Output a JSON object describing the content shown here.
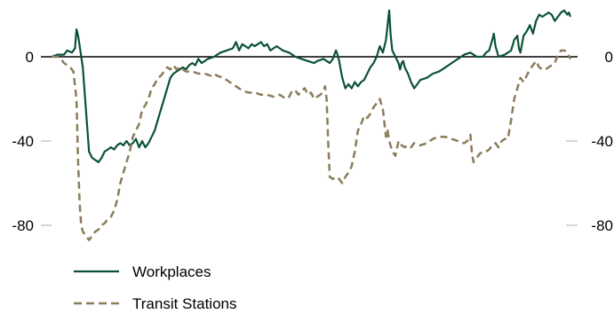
{
  "chart_data": {
    "type": "line",
    "title": "",
    "xlabel": "",
    "ylabel": "",
    "ylim": [
      -90,
      25
    ],
    "yticks": [
      0,
      -40,
      -80
    ],
    "ytick_labels": [
      "0",
      "-40",
      "-80"
    ],
    "legend_placement": "bottom-left",
    "zero_line": true,
    "grid": false,
    "series": [
      {
        "name": "Workplaces",
        "color": "#0b5234",
        "dash": "solid",
        "values": [
          [
            0,
            0
          ],
          [
            4,
            1
          ],
          [
            8,
            1
          ],
          [
            10,
            3
          ],
          [
            13,
            2
          ],
          [
            15,
            4
          ],
          [
            16,
            13
          ],
          [
            17,
            10
          ],
          [
            18,
            5
          ],
          [
            20,
            -5
          ],
          [
            22,
            -25
          ],
          [
            24,
            -45
          ],
          [
            26,
            -48
          ],
          [
            28,
            -49
          ],
          [
            30,
            -50
          ],
          [
            32,
            -48
          ],
          [
            34,
            -45
          ],
          [
            36,
            -44
          ],
          [
            38,
            -43
          ],
          [
            40,
            -44
          ],
          [
            42,
            -42
          ],
          [
            44,
            -41
          ],
          [
            46,
            -42
          ],
          [
            48,
            -40
          ],
          [
            50,
            -42
          ],
          [
            52,
            -41
          ],
          [
            54,
            -39
          ],
          [
            56,
            -43
          ],
          [
            58,
            -40
          ],
          [
            60,
            -43
          ],
          [
            62,
            -41
          ],
          [
            64,
            -38
          ],
          [
            66,
            -35
          ],
          [
            68,
            -30
          ],
          [
            70,
            -25
          ],
          [
            72,
            -20
          ],
          [
            74,
            -15
          ],
          [
            76,
            -10
          ],
          [
            78,
            -8
          ],
          [
            80,
            -7
          ],
          [
            82,
            -6
          ],
          [
            84,
            -5
          ],
          [
            86,
            -6
          ],
          [
            88,
            -4
          ],
          [
            90,
            -3
          ],
          [
            92,
            -4
          ],
          [
            94,
            -1
          ],
          [
            96,
            -3
          ],
          [
            98,
            -2
          ],
          [
            100,
            -1
          ],
          [
            104,
            0
          ],
          [
            108,
            2
          ],
          [
            112,
            3
          ],
          [
            116,
            4
          ],
          [
            118,
            7
          ],
          [
            120,
            3
          ],
          [
            122,
            6
          ],
          [
            124,
            5
          ],
          [
            126,
            4
          ],
          [
            128,
            6
          ],
          [
            130,
            5
          ],
          [
            134,
            7
          ],
          [
            136,
            5
          ],
          [
            138,
            6
          ],
          [
            140,
            3
          ],
          [
            144,
            5
          ],
          [
            148,
            3
          ],
          [
            152,
            2
          ],
          [
            156,
            0
          ],
          [
            160,
            -1
          ],
          [
            164,
            -2
          ],
          [
            168,
            -3
          ],
          [
            170,
            -2
          ],
          [
            174,
            -1
          ],
          [
            178,
            -3
          ],
          [
            180,
            -1
          ],
          [
            182,
            3
          ],
          [
            183,
            1
          ],
          [
            184,
            -2
          ],
          [
            185,
            -6
          ],
          [
            186,
            -10
          ],
          [
            188,
            -15
          ],
          [
            190,
            -13
          ],
          [
            192,
            -15
          ],
          [
            194,
            -12
          ],
          [
            196,
            -14
          ],
          [
            198,
            -12
          ],
          [
            200,
            -11
          ],
          [
            202,
            -8
          ],
          [
            204,
            -5
          ],
          [
            206,
            -3
          ],
          [
            208,
            0
          ],
          [
            210,
            5
          ],
          [
            212,
            2
          ],
          [
            214,
            8
          ],
          [
            215,
            15
          ],
          [
            216,
            22
          ],
          [
            217,
            10
          ],
          [
            218,
            3
          ],
          [
            220,
            0
          ],
          [
            222,
            -3
          ],
          [
            223,
            -6
          ],
          [
            224,
            -3
          ],
          [
            225,
            -2
          ],
          [
            226,
            -5
          ],
          [
            228,
            -8
          ],
          [
            230,
            -12
          ],
          [
            232,
            -15
          ],
          [
            234,
            -13
          ],
          [
            236,
            -11
          ],
          [
            240,
            -10
          ],
          [
            244,
            -8
          ],
          [
            248,
            -7
          ],
          [
            252,
            -5
          ],
          [
            256,
            -3
          ],
          [
            260,
            -1
          ],
          [
            264,
            1
          ],
          [
            268,
            2
          ],
          [
            270,
            1
          ],
          [
            272,
            0
          ],
          [
            276,
            0
          ],
          [
            278,
            2
          ],
          [
            280,
            3
          ],
          [
            282,
            8
          ],
          [
            283,
            11
          ],
          [
            284,
            5
          ],
          [
            286,
            0
          ],
          [
            290,
            1
          ],
          [
            294,
            3
          ],
          [
            296,
            8
          ],
          [
            298,
            10
          ],
          [
            299,
            4
          ],
          [
            300,
            2
          ],
          [
            302,
            10
          ],
          [
            304,
            12
          ],
          [
            306,
            15
          ],
          [
            308,
            11
          ],
          [
            310,
            17
          ],
          [
            312,
            20
          ],
          [
            314,
            19
          ],
          [
            318,
            21
          ],
          [
            320,
            20
          ],
          [
            322,
            17
          ],
          [
            324,
            19
          ],
          [
            326,
            21
          ],
          [
            328,
            22
          ],
          [
            330,
            20
          ],
          [
            331,
            21
          ],
          [
            332,
            19
          ]
        ]
      },
      {
        "name": "Transit Stations",
        "color": "#8b7d5b",
        "dash": "dashed",
        "values": [
          [
            0,
            0
          ],
          [
            4,
            0
          ],
          [
            6,
            -1
          ],
          [
            8,
            -3
          ],
          [
            10,
            -4
          ],
          [
            12,
            -5
          ],
          [
            14,
            -7
          ],
          [
            16,
            -20
          ],
          [
            17,
            -50
          ],
          [
            18,
            -70
          ],
          [
            19,
            -80
          ],
          [
            20,
            -83
          ],
          [
            22,
            -85
          ],
          [
            24,
            -87
          ],
          [
            26,
            -85
          ],
          [
            28,
            -83
          ],
          [
            30,
            -82
          ],
          [
            32,
            -80
          ],
          [
            34,
            -79
          ],
          [
            36,
            -77
          ],
          [
            38,
            -76
          ],
          [
            40,
            -73
          ],
          [
            42,
            -68
          ],
          [
            44,
            -60
          ],
          [
            46,
            -55
          ],
          [
            48,
            -50
          ],
          [
            50,
            -45
          ],
          [
            52,
            -38
          ],
          [
            54,
            -35
          ],
          [
            56,
            -32
          ],
          [
            58,
            -25
          ],
          [
            60,
            -23
          ],
          [
            62,
            -20
          ],
          [
            64,
            -15
          ],
          [
            66,
            -13
          ],
          [
            68,
            -10
          ],
          [
            70,
            -9
          ],
          [
            72,
            -7
          ],
          [
            74,
            -5
          ],
          [
            76,
            -6
          ],
          [
            78,
            -4
          ],
          [
            80,
            -6
          ],
          [
            82,
            -5
          ],
          [
            84,
            -6
          ],
          [
            86,
            -7
          ],
          [
            90,
            -7
          ],
          [
            94,
            -8
          ],
          [
            98,
            -8
          ],
          [
            102,
            -9
          ],
          [
            104,
            -8
          ],
          [
            106,
            -9
          ],
          [
            110,
            -10
          ],
          [
            114,
            -12
          ],
          [
            118,
            -14
          ],
          [
            122,
            -16
          ],
          [
            126,
            -17
          ],
          [
            130,
            -17
          ],
          [
            134,
            -18
          ],
          [
            138,
            -18
          ],
          [
            142,
            -19
          ],
          [
            146,
            -18
          ],
          [
            150,
            -20
          ],
          [
            152,
            -19
          ],
          [
            154,
            -16
          ],
          [
            156,
            -16
          ],
          [
            158,
            -18
          ],
          [
            160,
            -16
          ],
          [
            162,
            -15
          ],
          [
            164,
            -18
          ],
          [
            166,
            -17
          ],
          [
            168,
            -20
          ],
          [
            170,
            -19
          ],
          [
            172,
            -18
          ],
          [
            174,
            -16
          ],
          [
            175,
            -14
          ],
          [
            176,
            -20
          ],
          [
            177,
            -40
          ],
          [
            178,
            -57
          ],
          [
            180,
            -58
          ],
          [
            182,
            -57
          ],
          [
            184,
            -58
          ],
          [
            186,
            -60
          ],
          [
            188,
            -57
          ],
          [
            190,
            -55
          ],
          [
            192,
            -52
          ],
          [
            194,
            -45
          ],
          [
            196,
            -35
          ],
          [
            198,
            -32
          ],
          [
            200,
            -28
          ],
          [
            202,
            -29
          ],
          [
            204,
            -27
          ],
          [
            206,
            -24
          ],
          [
            208,
            -22
          ],
          [
            210,
            -20
          ],
          [
            212,
            -25
          ],
          [
            214,
            -38
          ],
          [
            215,
            -35
          ],
          [
            216,
            -40
          ],
          [
            218,
            -45
          ],
          [
            220,
            -47
          ],
          [
            222,
            -40
          ],
          [
            224,
            -42
          ],
          [
            226,
            -43
          ],
          [
            228,
            -42
          ],
          [
            230,
            -43
          ],
          [
            232,
            -41
          ],
          [
            236,
            -42
          ],
          [
            240,
            -41
          ],
          [
            244,
            -39
          ],
          [
            248,
            -38
          ],
          [
            252,
            -38
          ],
          [
            256,
            -39
          ],
          [
            260,
            -40
          ],
          [
            264,
            -41
          ],
          [
            266,
            -40
          ],
          [
            268,
            -37
          ],
          [
            269,
            -46
          ],
          [
            270,
            -50
          ],
          [
            272,
            -48
          ],
          [
            274,
            -46
          ],
          [
            276,
            -45
          ],
          [
            278,
            -45
          ],
          [
            280,
            -44
          ],
          [
            282,
            -42
          ],
          [
            284,
            -41
          ],
          [
            286,
            -43
          ],
          [
            288,
            -40
          ],
          [
            290,
            -39
          ],
          [
            292,
            -39
          ],
          [
            294,
            -30
          ],
          [
            296,
            -20
          ],
          [
            298,
            -15
          ],
          [
            300,
            -10
          ],
          [
            302,
            -12
          ],
          [
            304,
            -9
          ],
          [
            306,
            -6
          ],
          [
            308,
            -4
          ],
          [
            310,
            -2
          ],
          [
            312,
            -5
          ],
          [
            314,
            -6
          ],
          [
            316,
            -6
          ],
          [
            318,
            -5
          ],
          [
            320,
            -4
          ],
          [
            322,
            -3
          ],
          [
            324,
            1
          ],
          [
            326,
            3
          ],
          [
            328,
            3
          ],
          [
            330,
            2
          ],
          [
            332,
            -1
          ]
        ]
      }
    ]
  }
}
